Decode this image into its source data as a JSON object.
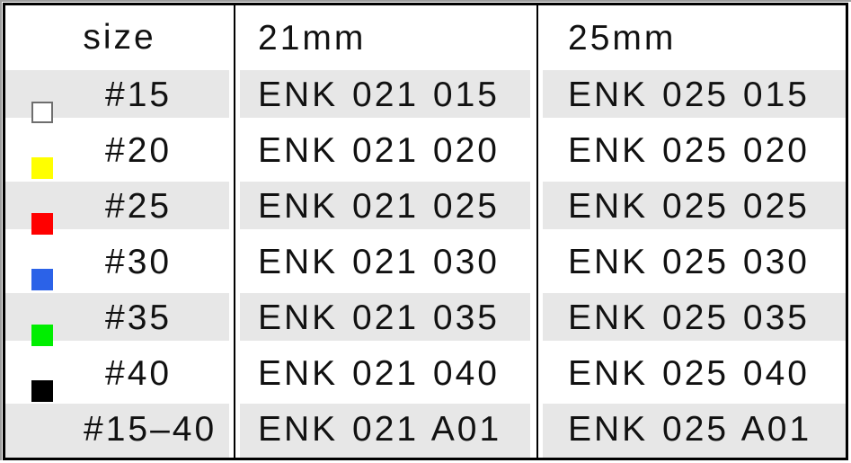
{
  "table": {
    "columns": [
      {
        "label": "size"
      },
      {
        "label": "21mm"
      },
      {
        "label": "25mm"
      }
    ],
    "rows": [
      {
        "size_label": "#15",
        "swatch": "white",
        "swatch_color": "#ffffff",
        "swatch_border": "#6e6e6e",
        "codes": [
          "ENK 021 015",
          "ENK 025 015"
        ]
      },
      {
        "size_label": "#20",
        "swatch": "yellow",
        "swatch_color": "#ffff00",
        "codes": [
          "ENK 021 020",
          "ENK 025 020"
        ]
      },
      {
        "size_label": "#25",
        "swatch": "red",
        "swatch_color": "#ff0000",
        "codes": [
          "ENK 021 025",
          "ENK 025 025"
        ]
      },
      {
        "size_label": "#30",
        "swatch": "blue",
        "swatch_color": "#2b62e8",
        "codes": [
          "ENK 021 030",
          "ENK 025 030"
        ]
      },
      {
        "size_label": "#35",
        "swatch": "green",
        "swatch_color": "#00ee00",
        "codes": [
          "ENK 021 035",
          "ENK 025 035"
        ]
      },
      {
        "size_label": "#40",
        "swatch": "black",
        "swatch_color": "#000000",
        "codes": [
          "ENK 021 040",
          "ENK 025 040"
        ]
      },
      {
        "size_label": "#15–40",
        "swatch": null,
        "codes": [
          "ENK 021 A01",
          "ENK 025 A01"
        ]
      }
    ],
    "colors": {
      "row_shade": "#e7e7e7",
      "border": "#000000",
      "background": "#ffffff"
    }
  }
}
